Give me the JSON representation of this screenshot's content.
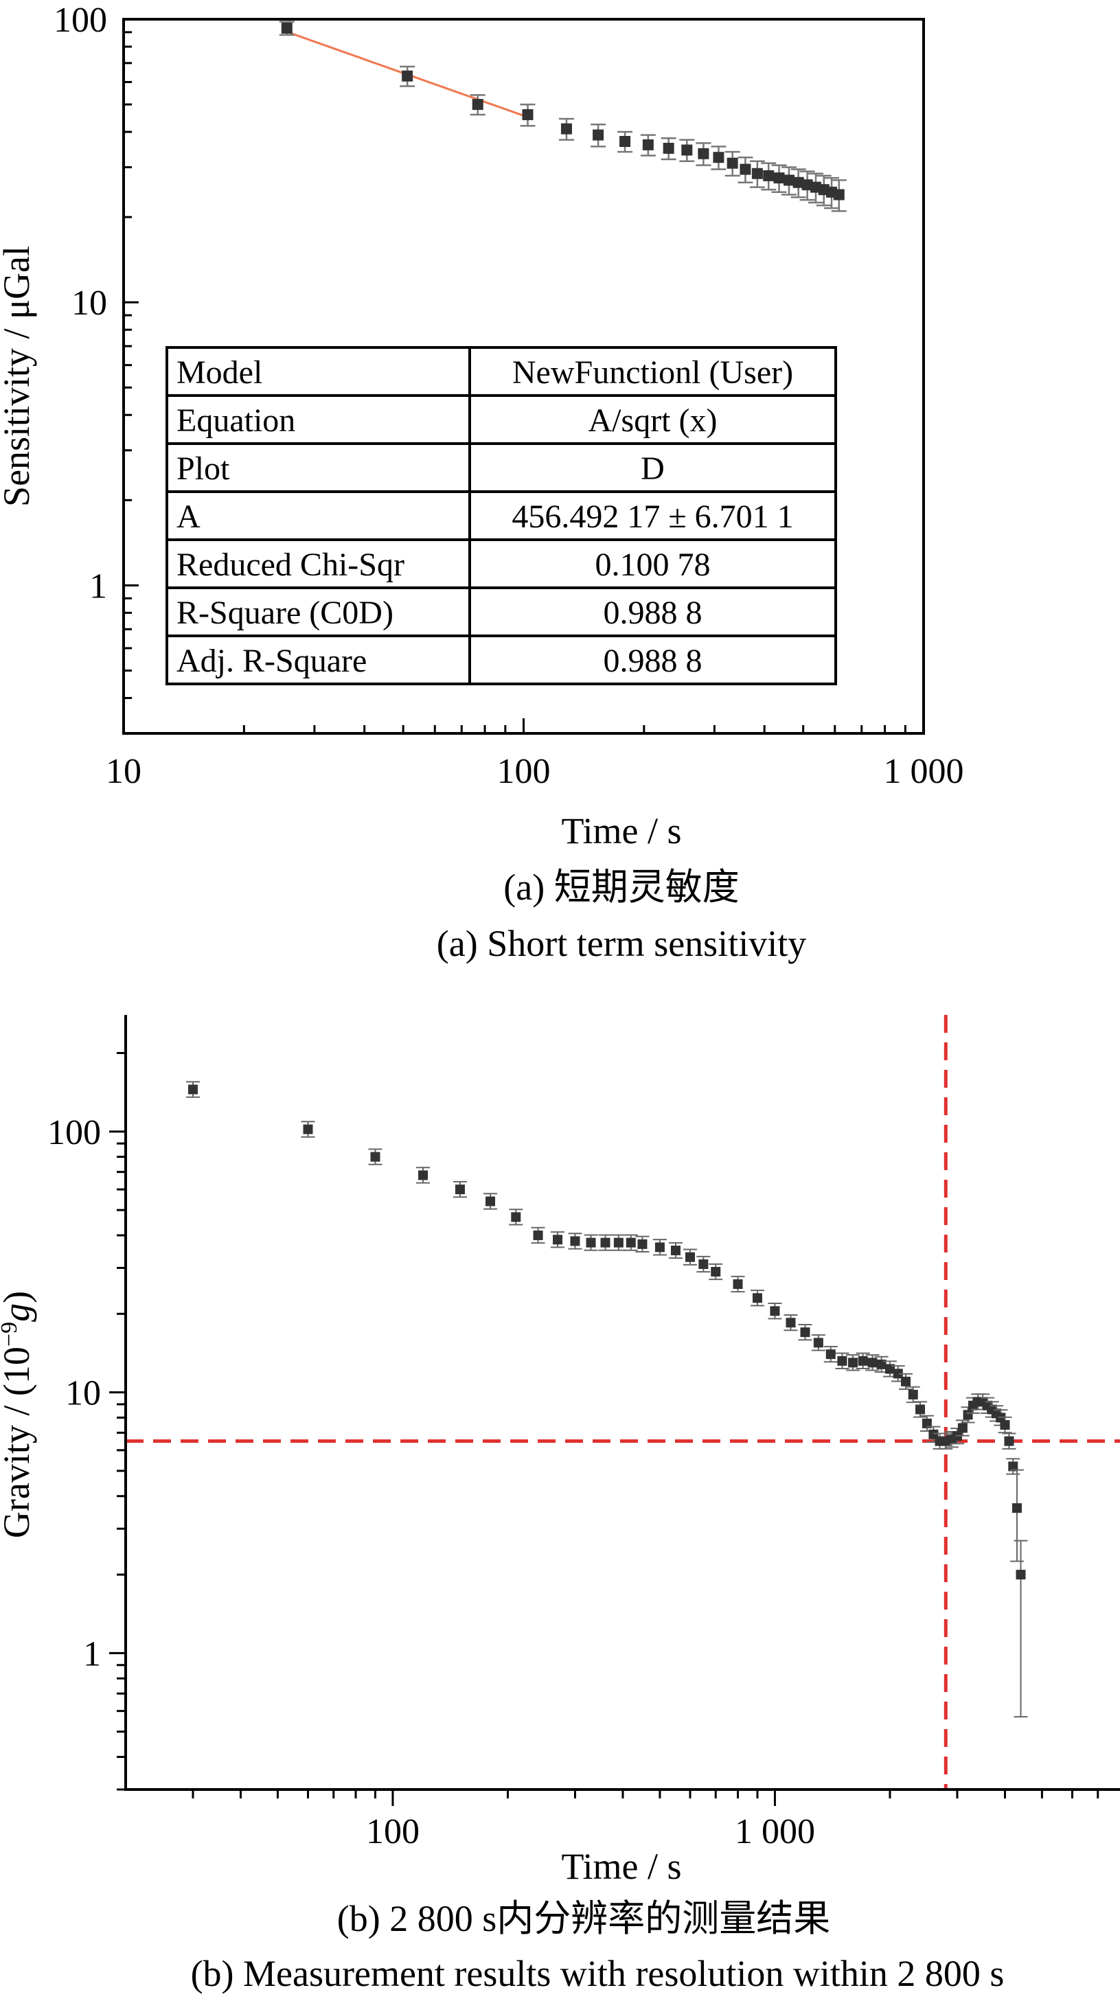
{
  "chart_data": [
    {
      "type": "scatter",
      "xscale": "log",
      "yscale": "log",
      "xlim": [
        10,
        1000
      ],
      "ylim": [
        0.3,
        100
      ],
      "xticks": [
        {
          "value": 10,
          "label": "10"
        },
        {
          "value": 100,
          "label": "100"
        },
        {
          "value": 1000,
          "label": "1 000"
        }
      ],
      "yticks": [
        {
          "value": 1,
          "label": "1"
        },
        {
          "value": 10,
          "label": "10"
        },
        {
          "value": 100,
          "label": "100"
        }
      ],
      "xlabel": "Time / s",
      "ylabel": "Sensitivity / μGal",
      "caption_cn": "(a) 短期灵敏度",
      "caption_en": "(a) Short term sensitivity",
      "series": [
        {
          "x": [
            25.6,
            51.2,
            76.8,
            102.4,
            128,
            153.6,
            179.2,
            204.8,
            230.4,
            256,
            281.6,
            307.2,
            332.8,
            358.4,
            384,
            409.6,
            435.2,
            460.8,
            486.4,
            512,
            537.6,
            563.2,
            588.8,
            614.4
          ],
          "y": [
            93,
            63,
            50,
            46,
            41,
            39,
            37,
            36,
            35,
            34.5,
            33.5,
            32.5,
            31,
            29.5,
            28.5,
            28,
            27.5,
            27,
            26.5,
            26,
            25.5,
            25,
            24.5,
            24
          ],
          "err": [
            5,
            5,
            4,
            4,
            3.5,
            3.5,
            3,
            3,
            3,
            3,
            3,
            3,
            3,
            3,
            3,
            3,
            3,
            3,
            3,
            3,
            3,
            3,
            3,
            3
          ]
        }
      ],
      "fit": {
        "model": "A/sqrt(x)",
        "A": 456.49217,
        "x_range": [
          25.6,
          102.4
        ],
        "color": "#f07850"
      },
      "table": [
        [
          "Model",
          "NewFunctionl (User)"
        ],
        [
          "Equation",
          "A/sqrt (x)"
        ],
        [
          "Plot",
          "D"
        ],
        [
          "A",
          "456.492 17 ± 6.701 1"
        ],
        [
          "Reduced Chi-Sqr",
          "0.100 78"
        ],
        [
          "R-Square (C0D)",
          "0.988 8"
        ],
        [
          "Adj. R-Square",
          "0.988 8"
        ]
      ]
    },
    {
      "type": "scatter",
      "xscale": "log",
      "yscale": "log",
      "xlim": [
        20,
        8000
      ],
      "ylim": [
        0.3,
        280
      ],
      "xticks": [
        {
          "value": 100,
          "label": "100"
        },
        {
          "value": 1000,
          "label": "1 000"
        }
      ],
      "yticks": [
        {
          "value": 1,
          "label": "1"
        },
        {
          "value": 10,
          "label": "10"
        },
        {
          "value": 100,
          "label": "100"
        }
      ],
      "xlabel": "Time / s",
      "ylabel_prefix": "Gravity / (10",
      "ylabel_exp": "−9",
      "ylabel_unit": "g",
      "ylabel_suffix": ")",
      "caption_cn": "(b) 2 800 s内分辨率的测量结果",
      "caption_en": "(b) Measurement results with resolution within 2 800 s",
      "threshold_x": 2800,
      "threshold_y": 6.5,
      "threshold_color": "#e03030",
      "series": [
        {
          "x": [
            30,
            60,
            90,
            120,
            150,
            180,
            210,
            240,
            270,
            300,
            330,
            360,
            390,
            420,
            450,
            500,
            550,
            600,
            650,
            700,
            800,
            900,
            1000,
            1100,
            1200,
            1300,
            1400,
            1500,
            1600,
            1700,
            1800,
            1900,
            2000,
            2100,
            2200,
            2300,
            2400,
            2500,
            2600,
            2700,
            2800,
            2900,
            3000,
            3100,
            3200,
            3300,
            3400,
            3500,
            3600,
            3700,
            3800,
            3900,
            4000,
            4100,
            4200,
            4300,
            4400
          ],
          "y": [
            145,
            102,
            80,
            68,
            60,
            54,
            47,
            40,
            38.5,
            38,
            37.5,
            37.5,
            37.5,
            37.5,
            37,
            36,
            35,
            33,
            31,
            29,
            26,
            23,
            20.5,
            18.5,
            17,
            15.5,
            14,
            13.2,
            13,
            13.2,
            13,
            12.8,
            12.3,
            11.8,
            11,
            9.8,
            8.6,
            7.6,
            6.9,
            6.5,
            6.5,
            6.6,
            6.8,
            7.3,
            8.2,
            8.9,
            9.2,
            9.2,
            8.9,
            8.6,
            8.3,
            8,
            7.5,
            6.5,
            5.2,
            3.6,
            2
          ]
        }
      ]
    }
  ]
}
